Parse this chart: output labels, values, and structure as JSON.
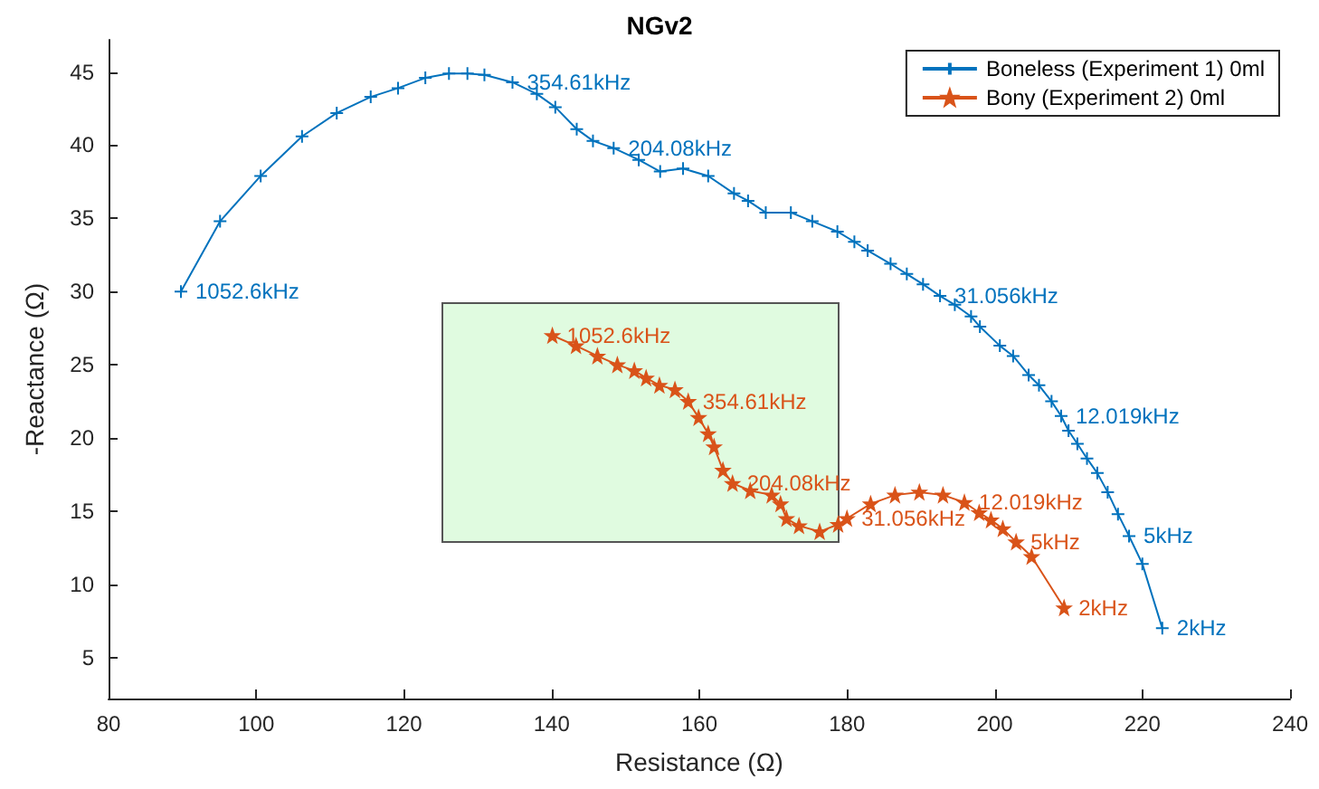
{
  "chart_data": {
    "type": "line",
    "title": "NGv2",
    "xlabel": "Resistance (Ω)",
    "ylabel": "-Reactance (Ω)",
    "xlim": [
      80,
      240
    ],
    "xticks": [
      80,
      100,
      120,
      140,
      160,
      180,
      200,
      220,
      240
    ],
    "ylim": [
      2.2,
      47.2
    ],
    "yticks": [
      5,
      10,
      15,
      20,
      25,
      30,
      35,
      40,
      45
    ],
    "grid": false,
    "legend": "top right",
    "annotations": [
      {
        "text": "1052.6kHz",
        "x": 89.8,
        "y": 30.0
      },
      {
        "text": "354.61kHz",
        "x": 134.7,
        "y": 44.3
      },
      {
        "text": "204.08kHz",
        "x": 148.4,
        "y": 39.8
      },
      {
        "text": "31.056kHz",
        "x": 192.6,
        "y": 29.7
      },
      {
        "text": "12.019kHz",
        "x": 209.0,
        "y": 21.5
      },
      {
        "text": "5kHz",
        "x": 218.2,
        "y": 13.3
      },
      {
        "text": "2kHz",
        "x": 222.7,
        "y": 7.0
      },
      {
        "text": "1052.6kHz",
        "x": 140.1,
        "y": 27.0
      },
      {
        "text": "354.61kHz",
        "x": 158.5,
        "y": 22.5
      },
      {
        "text": "204.08kHz",
        "x": 164.5,
        "y": 16.9
      },
      {
        "text": "31.056kHz",
        "x": 180.0,
        "y": 14.5
      },
      {
        "text": "12.019kHz",
        "x": 195.9,
        "y": 15.6
      },
      {
        "text": "5kHz",
        "x": 202.9,
        "y": 12.9
      },
      {
        "text": "2kHz",
        "x": 209.4,
        "y": 8.4
      }
    ],
    "series": [
      {
        "name": "Boneless (Experiment 1) 0ml",
        "color": "#0072bd",
        "marker": "cross",
        "x": [
          89.8,
          95.1,
          100.6,
          106.2,
          110.9,
          115.5,
          119.2,
          122.9,
          126.1,
          128.6,
          130.9,
          134.7,
          138.0,
          140.5,
          143.4,
          145.6,
          148.4,
          151.8,
          154.7,
          157.8,
          161.2,
          164.7,
          166.6,
          169.0,
          172.4,
          175.3,
          178.7,
          181.0,
          182.8,
          185.9,
          188.1,
          190.3,
          192.6,
          194.6,
          196.8,
          198.0,
          200.7,
          202.5,
          204.6,
          206.0,
          207.7,
          209.0,
          210.0,
          211.2,
          212.5,
          213.9,
          215.3,
          216.7,
          218.2,
          220.0,
          222.7
        ],
        "values": [
          30.0,
          34.8,
          37.9,
          40.6,
          42.2,
          43.3,
          43.9,
          44.6,
          44.9,
          44.9,
          44.8,
          44.3,
          43.5,
          42.6,
          41.1,
          40.3,
          39.8,
          39.0,
          38.2,
          38.4,
          37.9,
          36.7,
          36.2,
          35.4,
          35.4,
          34.8,
          34.1,
          33.4,
          32.8,
          31.9,
          31.2,
          30.5,
          29.7,
          29.1,
          28.3,
          27.6,
          26.3,
          25.6,
          24.3,
          23.6,
          22.5,
          21.5,
          20.5,
          19.6,
          18.6,
          17.6,
          16.3,
          14.8,
          13.3,
          11.4,
          7.0
        ]
      },
      {
        "name": "Bony (Experiment 2) 0ml",
        "color": "#d95319",
        "marker": "star",
        "x": [
          140.1,
          143.3,
          146.2,
          148.9,
          151.2,
          152.8,
          154.6,
          156.7,
          158.5,
          159.9,
          161.2,
          162.0,
          163.2,
          164.5,
          166.9,
          169.8,
          171.0,
          171.8,
          173.5,
          176.3,
          178.8,
          180.0,
          183.2,
          186.5,
          189.8,
          193.0,
          195.9,
          197.9,
          199.5,
          201.1,
          202.9,
          205.0,
          209.4
        ],
        "values": [
          27.0,
          26.3,
          25.6,
          25.0,
          24.6,
          24.1,
          23.6,
          23.3,
          22.5,
          21.4,
          20.3,
          19.4,
          17.8,
          16.9,
          16.4,
          16.1,
          15.5,
          14.5,
          14.0,
          13.6,
          14.1,
          14.5,
          15.5,
          16.1,
          16.3,
          16.1,
          15.6,
          14.9,
          14.4,
          13.8,
          12.9,
          11.9,
          8.4
        ]
      }
    ]
  }
}
